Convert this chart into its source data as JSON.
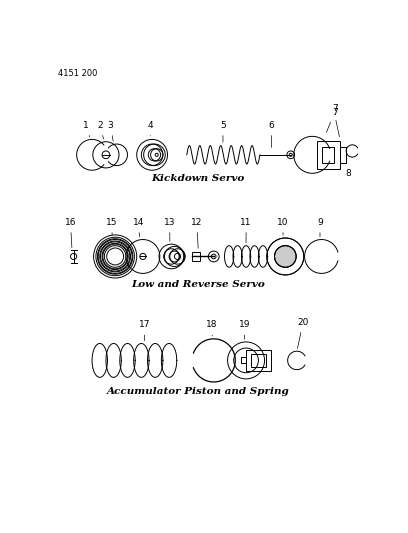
{
  "title": "4151 200",
  "section1_label": "Kickdown Servo",
  "section2_label": "Low and Reverse Servo",
  "section3_label": "Accumulator Piston and Spring",
  "bg": "#ffffff",
  "lc": "#000000",
  "fs_label": 6.5,
  "fs_section": 7.5,
  "fs_title": 6
}
